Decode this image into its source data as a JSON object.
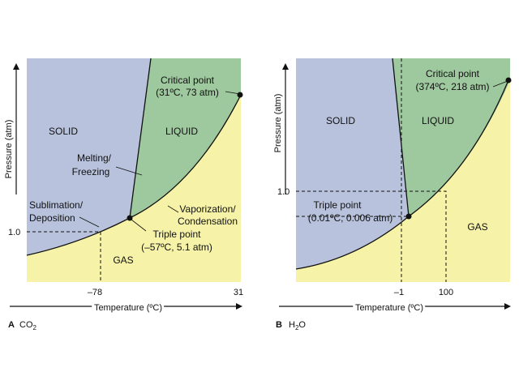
{
  "colors": {
    "solid": "#b8c2dc",
    "liquid": "#9ec89e",
    "gas": "#f6f3a8",
    "line": "#111111"
  },
  "panel_a": {
    "letter": "A",
    "formula_main": "CO",
    "formula_sub": "2",
    "regions": {
      "solid": "SOLID",
      "liquid": "LIQUID",
      "gas": "GAS"
    },
    "critical_point": {
      "line1": "Critical point",
      "line2": "(31ºC, 73 atm)"
    },
    "triple_point": {
      "line1": "Triple point",
      "line2": "(–57ºC, 5.1 atm)"
    },
    "melting": {
      "line1": "Melting/",
      "line2": "Freezing"
    },
    "sublimation": {
      "line1": "Sublimation/",
      "line2": "Deposition"
    },
    "vaporization": {
      "line1": "Vaporization/",
      "line2": "Condensation"
    },
    "y_axis_title": "Pressure (atm)",
    "x_axis_title": "Temperature (ºC)",
    "y_tick": "1.0",
    "x_ticks": [
      "–78",
      "31"
    ]
  },
  "panel_b": {
    "letter": "B",
    "formula_pre": "H",
    "formula_sub": "2",
    "formula_post": "O",
    "regions": {
      "solid": "SOLID",
      "liquid": "LIQUID",
      "gas": "GAS"
    },
    "critical_point": {
      "line1": "Critical point",
      "line2": "(374ºC, 218 atm)"
    },
    "triple_point": {
      "line1": "Triple point",
      "line2": "(0.01ºC, 0.006 atm)"
    },
    "y_axis_title": "Pressure (atm)",
    "x_axis_title": "Temperature (ºC)",
    "y_tick": "1.0",
    "x_ticks": [
      "–1",
      "100"
    ]
  }
}
